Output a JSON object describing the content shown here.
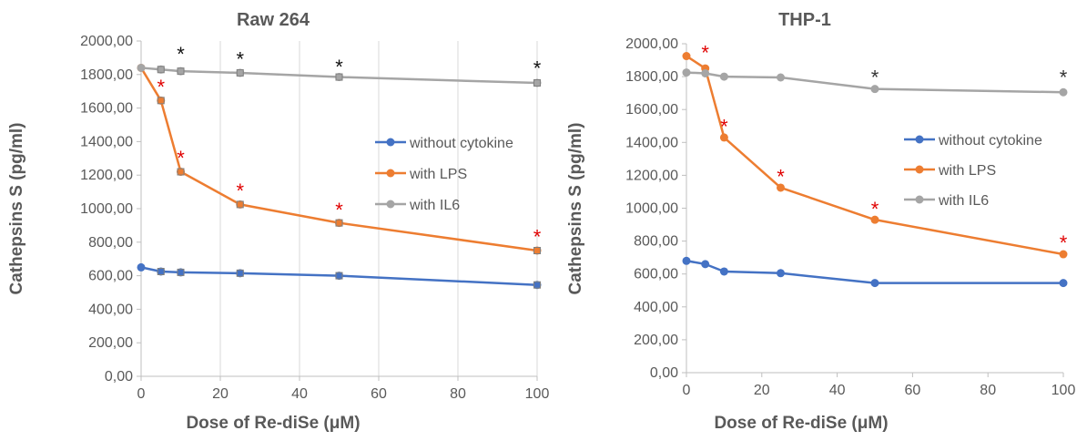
{
  "chart_data": [
    {
      "type": "line",
      "title": "Raw 264",
      "xlabel": "Dose of Re-diSe (μM)",
      "ylabel": "Cathepsins S (pg/ml)",
      "xlim": [
        0,
        100
      ],
      "ylim": [
        0,
        2000
      ],
      "xticks": [
        "0",
        "20",
        "40",
        "60",
        "80",
        "100"
      ],
      "yticks": [
        "0,00",
        "200,00",
        "400,00",
        "600,00",
        "800,00",
        "1000,00",
        "1200,00",
        "1400,00",
        "1600,00",
        "1800,00",
        "2000,00"
      ],
      "grid": "vertical",
      "legend_position": "right",
      "x": [
        0,
        5,
        10,
        25,
        50,
        100
      ],
      "series": [
        {
          "name": "without cytokine",
          "color": "#4472C4",
          "values": [
            650,
            625,
            620,
            615,
            600,
            545
          ]
        },
        {
          "name": "with LPS",
          "color": "#ED7D31",
          "values": [
            1840,
            1645,
            1220,
            1025,
            915,
            750
          ]
        },
        {
          "name": "with IL6",
          "color": "#A5A5A5",
          "values": [
            1840,
            1830,
            1820,
            1810,
            1785,
            1750
          ]
        }
      ],
      "annotations": [
        {
          "text": "*",
          "color": "#e00000",
          "x": 5,
          "y": 1745
        },
        {
          "text": "*",
          "color": "#e00000",
          "x": 10,
          "y": 1320
        },
        {
          "text": "*",
          "color": "#e00000",
          "x": 25,
          "y": 1125
        },
        {
          "text": "*",
          "color": "#e00000",
          "x": 50,
          "y": 1010
        },
        {
          "text": "*",
          "color": "#e00000",
          "x": 100,
          "y": 850
        },
        {
          "text": "*",
          "color": "#111111",
          "x": 10,
          "y": 1940
        },
        {
          "text": "*",
          "color": "#111111",
          "x": 25,
          "y": 1910
        },
        {
          "text": "*",
          "color": "#111111",
          "x": 50,
          "y": 1865
        },
        {
          "text": "*",
          "color": "#111111",
          "x": 100,
          "y": 1855
        }
      ]
    },
    {
      "type": "line",
      "title": "THP-1",
      "xlabel": "Dose of Re-diSe (μM)",
      "ylabel": "Cathepsins S (pg/ml)",
      "xlim": [
        0,
        100
      ],
      "ylim": [
        0,
        2000
      ],
      "xticks": [
        "0",
        "20",
        "40",
        "60",
        "80",
        "100"
      ],
      "yticks": [
        "0,00",
        "200,00",
        "400,00",
        "600,00",
        "800,00",
        "1000,00",
        "1200,00",
        "1400,00",
        "1600,00",
        "1800,00",
        "2000,00"
      ],
      "grid": "none",
      "legend_position": "right",
      "x": [
        0,
        5,
        10,
        25,
        50,
        100
      ],
      "series": [
        {
          "name": "without cytokine",
          "color": "#4472C4",
          "values": [
            680,
            660,
            615,
            605,
            545,
            545
          ]
        },
        {
          "name": "with LPS",
          "color": "#ED7D31",
          "values": [
            1925,
            1850,
            1430,
            1125,
            930,
            720
          ]
        },
        {
          "name": "with IL6",
          "color": "#A5A5A5",
          "values": [
            1825,
            1820,
            1800,
            1795,
            1725,
            1705
          ]
        }
      ],
      "annotations": [
        {
          "text": "*",
          "color": "#e00000",
          "x": 5,
          "y": 1965
        },
        {
          "text": "*",
          "color": "#e00000",
          "x": 10,
          "y": 1515
        },
        {
          "text": "*",
          "color": "#e00000",
          "x": 25,
          "y": 1210
        },
        {
          "text": "*",
          "color": "#e00000",
          "x": 50,
          "y": 1015
        },
        {
          "text": "*",
          "color": "#e00000",
          "x": 100,
          "y": 810
        },
        {
          "text": "*",
          "color": "#333333",
          "x": 50,
          "y": 1815
        },
        {
          "text": "*",
          "color": "#333333",
          "x": 100,
          "y": 1815
        }
      ]
    }
  ]
}
